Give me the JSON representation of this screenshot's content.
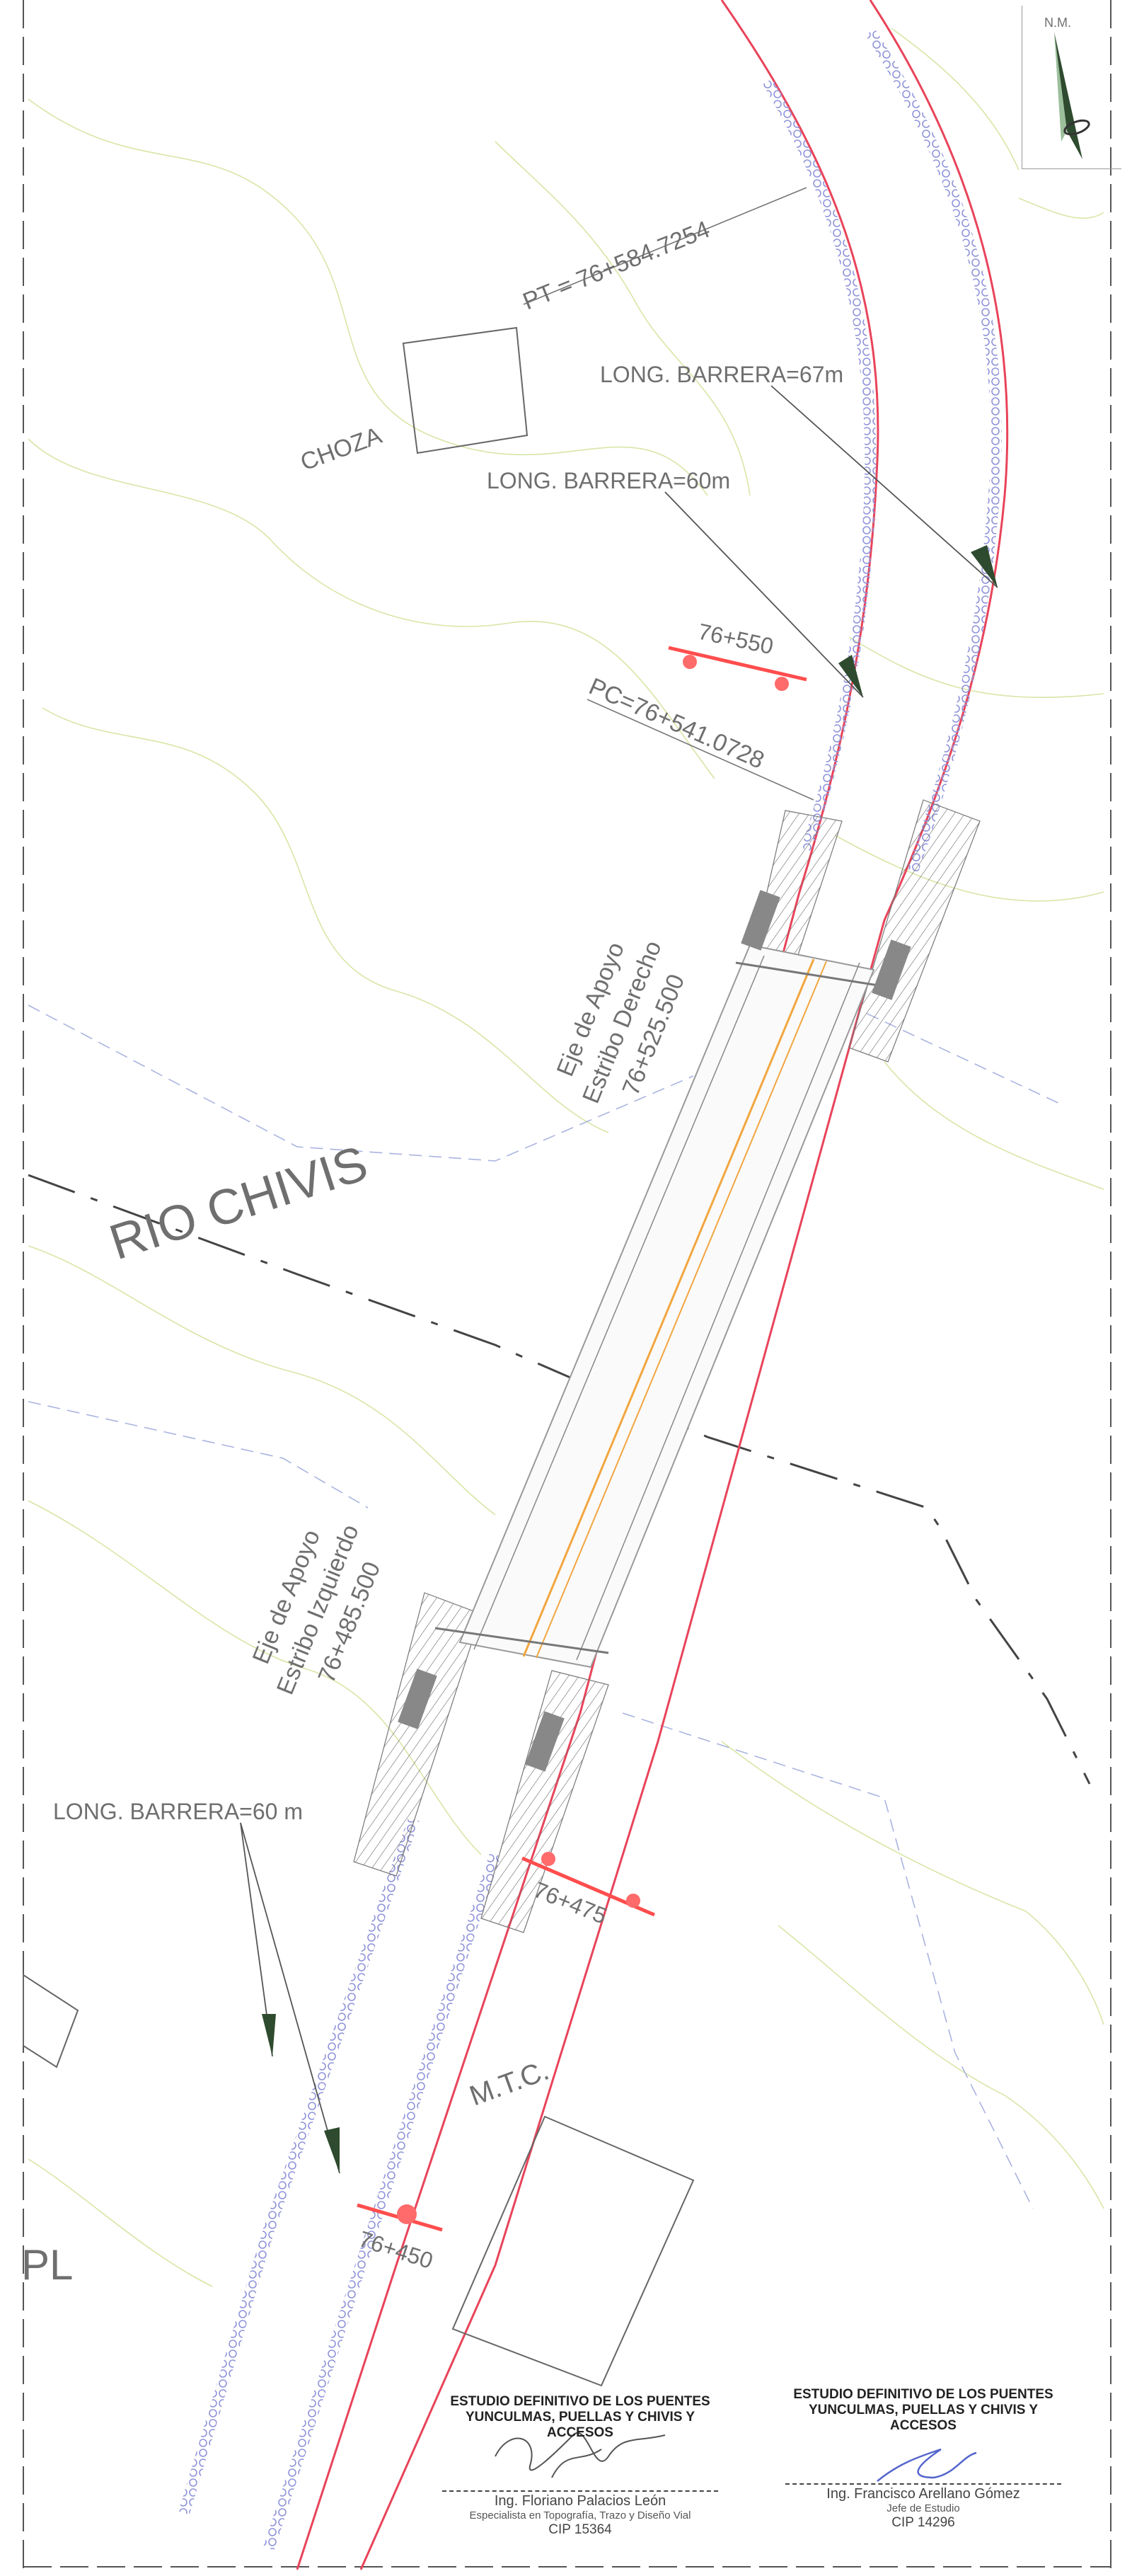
{
  "north": {
    "label": "N.M."
  },
  "stations": {
    "pt": "PT = 76+584.7254",
    "pc": "PC=76+541.0728",
    "sta_550": "76+550",
    "sta_475": "76+475",
    "sta_450": "76+450"
  },
  "labels": {
    "choza": "CHOZA",
    "rio": "RIO CHIVIS",
    "mtc": "M.T.C.",
    "pl": "PL"
  },
  "barriers": {
    "b67": "LONG. BARRERA=67m",
    "b60_top": "LONG. BARRERA=60m",
    "b60_bottom": "LONG. BARRERA=60 m"
  },
  "abutments": {
    "right": [
      "Eje de Apoyo",
      "Estribo Derecho",
      "76+525.500"
    ],
    "left": [
      "Eje de Apoyo",
      "Estribo Izquierdo",
      "76+485.500"
    ]
  },
  "signatures": [
    {
      "title_1": "ESTUDIO DEFINITIVO DE LOS PUENTES",
      "title_2": "YUNCULMAS, PUELLAS Y CHIVIS Y ACCESOS",
      "name": "Ing. Floriano Palacios León",
      "role": "Especialista en Topografía, Trazo y Diseño Vial",
      "cip": "CIP 15364"
    },
    {
      "title_1": "ESTUDIO DEFINITIVO DE LOS PUENTES",
      "title_2": "YUNCULMAS, PUELLAS Y CHIVIS Y ACCESOS",
      "name": "Ing. Francisco Arellano Gómez",
      "role": "Jefe de Estudio",
      "cip": "CIP 14296"
    }
  ],
  "colors": {
    "road_edge": "#e8445a",
    "barrier": "#8f93d8",
    "deck": "#f2a640",
    "contour": "#d7e6a6",
    "river": "#444444",
    "arrow": "#2f4b2f",
    "station": "#ff6a6a"
  }
}
